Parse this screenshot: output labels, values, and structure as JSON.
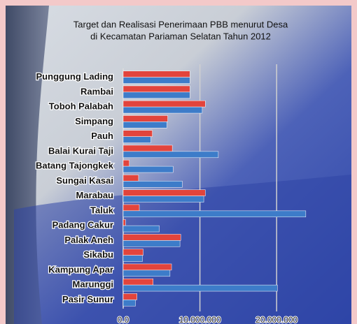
{
  "chart_data": {
    "type": "hbar",
    "title": "Target dan Realisasi Penerimaan PBB menurut Desa",
    "subtitle": "di Kecamatan Pariaman Selatan Tahun 2012",
    "categories": [
      "Punggung Lading",
      "Rambai",
      "Toboh Palabah",
      "Simpang",
      "Pauh",
      "Balai Kurai Taji",
      "Batang Tajongkek",
      "Sungai Kasai",
      "Marabau",
      "Taluk",
      "Padang Cakur",
      "Palak Aneh",
      "Sikabu",
      "Kampung Apar",
      "Marunggi",
      "Pasir Sunur"
    ],
    "series": [
      {
        "color": "#e2443c",
        "values": [
          8700000,
          8700000,
          10700000,
          5800000,
          3800000,
          6400000,
          800000,
          2000000,
          10700000,
          2100000,
          300000,
          7500000,
          2600000,
          6300000,
          3900000,
          1800000
        ]
      },
      {
        "color": "#3d7cc9",
        "values": [
          8700000,
          8700000,
          10300000,
          5700000,
          3600000,
          12400000,
          6500000,
          7700000,
          10500000,
          23800000,
          4700000,
          7400000,
          2500000,
          6100000,
          20100000,
          1600000
        ]
      }
    ],
    "xlim": [
      0,
      25000000
    ],
    "xticks": [
      {
        "value": 0,
        "label": "0.0"
      },
      {
        "value": 10000000,
        "label": "10.000.000"
      },
      {
        "value": 20000000,
        "label": "20.000.000"
      }
    ],
    "grid": true
  }
}
